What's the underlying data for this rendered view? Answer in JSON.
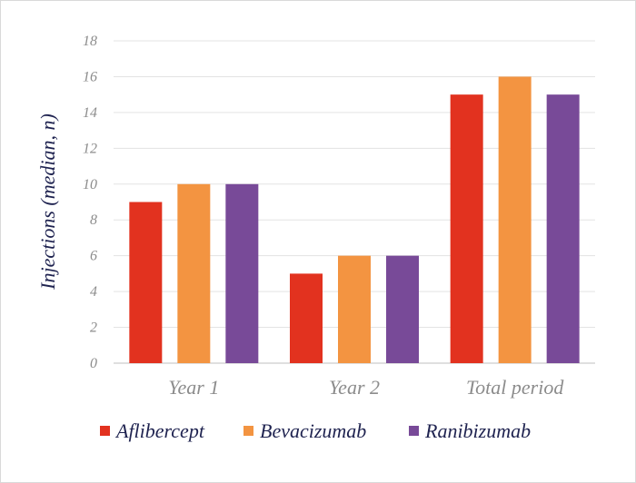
{
  "chart_data": {
    "type": "bar",
    "title": "",
    "xlabel": "",
    "ylabel": "Injections (median, n)",
    "ylim": [
      0,
      18
    ],
    "yticks": [
      0,
      2,
      4,
      6,
      8,
      10,
      12,
      14,
      16,
      18
    ],
    "categories": [
      "Year 1",
      "Year 2",
      "Total period"
    ],
    "series": [
      {
        "name": "Aflibercept",
        "color": "#e2321f",
        "values": [
          9,
          5,
          15
        ]
      },
      {
        "name": "Bevacizumab",
        "color": "#f39441",
        "values": [
          10,
          6,
          16
        ]
      },
      {
        "name": "Ranibizumab",
        "color": "#784a98",
        "values": [
          10,
          6,
          15
        ]
      }
    ],
    "grid": true,
    "legend": "bottom"
  }
}
